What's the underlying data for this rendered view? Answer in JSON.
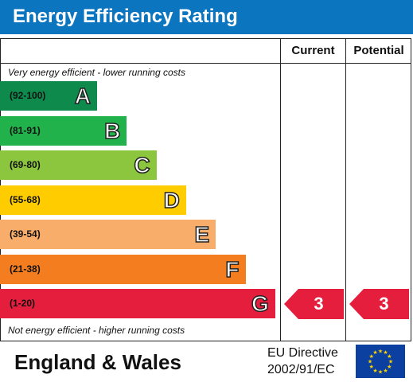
{
  "header": {
    "title": "Energy Efficiency Rating"
  },
  "columns": {
    "current": "Current",
    "potential": "Potential"
  },
  "notes": {
    "top": "Very energy efficient - lower running costs",
    "bottom": "Not energy efficient - higher running costs"
  },
  "chart_data": {
    "type": "bar",
    "title": "Energy Efficiency Rating",
    "bands": [
      {
        "letter": "A",
        "range": "(92-100)",
        "color": "#0f8a4d"
      },
      {
        "letter": "B",
        "range": "(81-91)",
        "color": "#22b24b"
      },
      {
        "letter": "C",
        "range": "(69-80)",
        "color": "#8cc63f"
      },
      {
        "letter": "D",
        "range": "(55-68)",
        "color": "#ffcc00"
      },
      {
        "letter": "E",
        "range": "(39-54)",
        "color": "#f8ad6b"
      },
      {
        "letter": "F",
        "range": "(21-38)",
        "color": "#f47d20"
      },
      {
        "letter": "G",
        "range": "(1-20)",
        "color": "#e41e3c"
      }
    ],
    "current": {
      "value": 3,
      "band": "G"
    },
    "potential": {
      "value": 3,
      "band": "G"
    }
  },
  "footer": {
    "region": "England & Wales",
    "directive_line1": "EU Directive",
    "directive_line2": "2002/91/EC"
  },
  "colors": {
    "header": "#0b75c0",
    "flag": "#0b3fa0",
    "stars": "#ffd200"
  }
}
